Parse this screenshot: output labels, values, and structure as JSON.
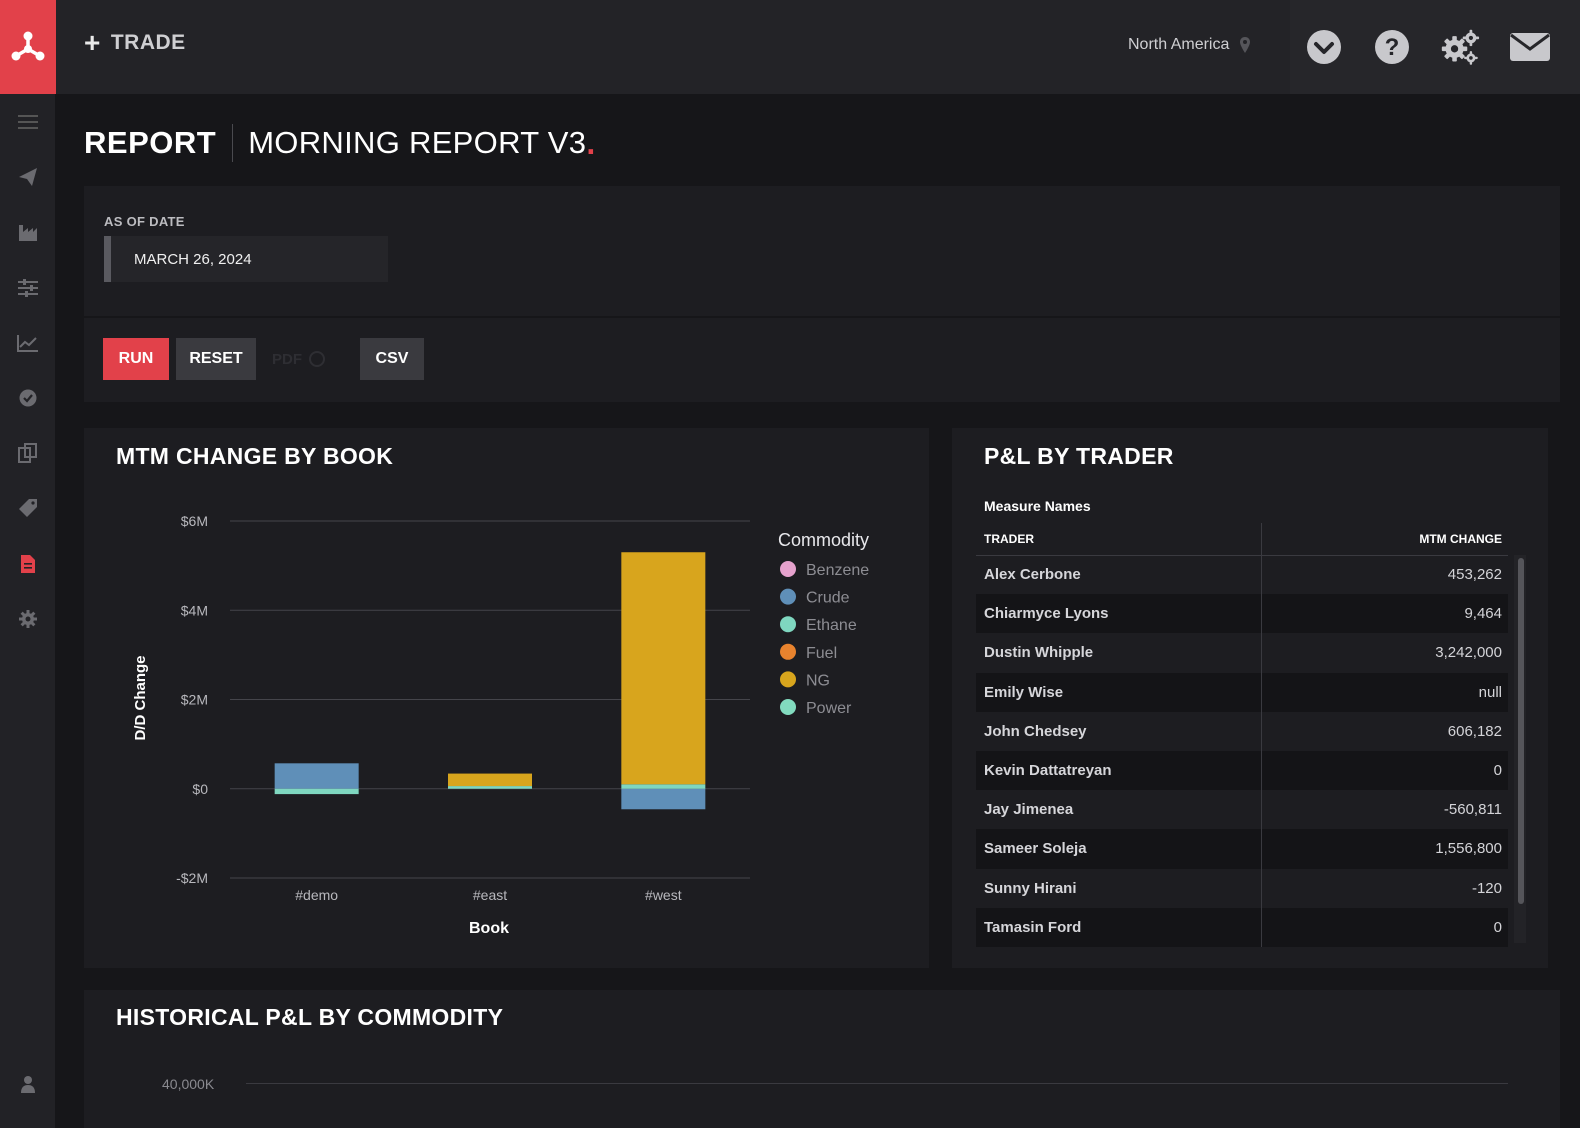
{
  "topbar": {
    "trade_label": "TRADE",
    "region": "North America",
    "icons": [
      "chevron-down-circle-icon",
      "help-icon",
      "gears-icon",
      "mail-icon"
    ]
  },
  "sidebar": {
    "icons": [
      "menu-icon",
      "paper-plane-icon",
      "factory-icon",
      "sliders-icon",
      "line-chart-icon",
      "check-circle-icon",
      "documents-icon",
      "tag-icon",
      "report-icon",
      "settings-icon",
      "user-icon"
    ],
    "active": "report-icon"
  },
  "page": {
    "title": "REPORT",
    "subtitle": "MORNING REPORT V3",
    "dot": "."
  },
  "filters": {
    "date_label": "AS OF DATE",
    "date_value": "MARCH 26, 2024"
  },
  "actions": {
    "run": "RUN",
    "reset": "RESET",
    "pdf": "PDF",
    "csv": "CSV"
  },
  "mtm_panel": {
    "title": "MTM CHANGE BY BOOK"
  },
  "chart_data": {
    "type": "bar",
    "stacked": true,
    "categories": [
      "#demo",
      "#east",
      "#west"
    ],
    "xlabel": "Book",
    "ylabel": "D/D Change",
    "ylim": [
      -2000000,
      6000000
    ],
    "yticks": [
      {
        "value": 6000000,
        "label": "$6M"
      },
      {
        "value": 4000000,
        "label": "$4M"
      },
      {
        "value": 2000000,
        "label": "$2M"
      },
      {
        "value": 0,
        "label": "$0"
      },
      {
        "value": -2000000,
        "label": "-$2M"
      }
    ],
    "legend_title": "Commodity",
    "legend_position": "right",
    "grid": true,
    "series": [
      {
        "name": "Benzene",
        "color": "#e6a2cd",
        "values": [
          0,
          0,
          0
        ]
      },
      {
        "name": "Crude",
        "color": "#5f8fb8",
        "values": [
          570000,
          0,
          -460000
        ]
      },
      {
        "name": "Ethane",
        "color": "#7fd7c0",
        "values": [
          -120000,
          60000,
          100000
        ]
      },
      {
        "name": "Fuel",
        "color": "#e8832e",
        "values": [
          0,
          0,
          0
        ]
      },
      {
        "name": "NG",
        "color": "#d8a51d",
        "values": [
          0,
          280000,
          5200000
        ]
      },
      {
        "name": "Power",
        "color": "#82dbbf",
        "values": [
          0,
          0,
          0
        ]
      }
    ]
  },
  "pl_panel": {
    "title": "P&L BY TRADER",
    "measure_names": "Measure Names",
    "columns": [
      "TRADER",
      "MTM CHANGE"
    ],
    "rows": [
      {
        "trader": "Alex Cerbone",
        "mtm": "453,262"
      },
      {
        "trader": "Chiarmyce Lyons",
        "mtm": "9,464"
      },
      {
        "trader": "Dustin Whipple",
        "mtm": "3,242,000"
      },
      {
        "trader": "Emily Wise",
        "mtm": "null"
      },
      {
        "trader": "John Chedsey",
        "mtm": "606,182"
      },
      {
        "trader": "Kevin Dattatreyan",
        "mtm": "0"
      },
      {
        "trader": "Jay Jimenea",
        "mtm": "-560,811"
      },
      {
        "trader": "Sameer Soleja",
        "mtm": "1,556,800"
      },
      {
        "trader": "Sunny Hirani",
        "mtm": "-120"
      },
      {
        "trader": "Tamasin Ford",
        "mtm": "0"
      }
    ]
  },
  "historical_panel": {
    "title": "HISTORICAL P&L BY COMMODITY",
    "first_tick": "40,000K"
  },
  "colors": {
    "accent": "#e2414a",
    "background": "#161619",
    "panel": "#1d1d21"
  }
}
